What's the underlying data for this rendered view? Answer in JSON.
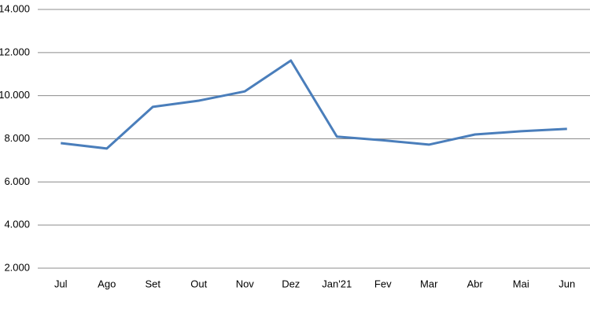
{
  "chart_data": {
    "type": "line",
    "categories": [
      "Jul",
      "Ago",
      "Set",
      "Out",
      "Nov",
      "Dez",
      "Jan'21",
      "Fev",
      "Mar",
      "Abr",
      "Mai",
      "Jun"
    ],
    "series": [
      {
        "color": "#4a7ebb",
        "values": [
          7800,
          7550,
          9480,
          9770,
          10200,
          11630,
          8100,
          7930,
          7730,
          8200,
          8350,
          8460
        ]
      }
    ],
    "ylim": [
      2000,
      14000
    ],
    "yticks": [
      {
        "value": 2000,
        "label": "2.000"
      },
      {
        "value": 4000,
        "label": "4.000"
      },
      {
        "value": 6000,
        "label": "6.000"
      },
      {
        "value": 8000,
        "label": "8.000"
      },
      {
        "value": 10000,
        "label": "10.000"
      },
      {
        "value": 12000,
        "label": "12.000"
      },
      {
        "value": 14000,
        "label": "14.000"
      }
    ],
    "grid": true
  }
}
